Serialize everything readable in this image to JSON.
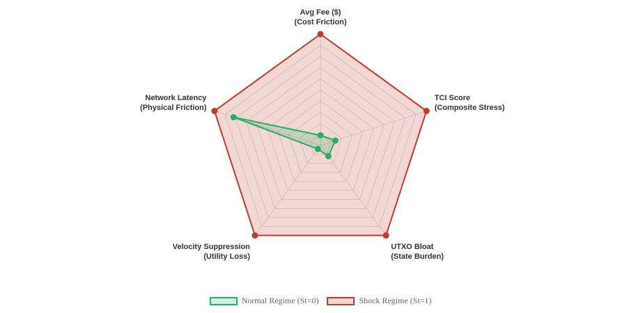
{
  "chart_data": {
    "type": "radar",
    "axes": [
      {
        "line1": "Avg Fee ($)",
        "line2": "(Cost Friction)"
      },
      {
        "line1": "TCI Score",
        "line2": "(Composite Stress)"
      },
      {
        "line1": "UTXO Bloat",
        "line2": "(State Burden)"
      },
      {
        "line1": "Velocity Suppression",
        "line2": "(Utility Loss)"
      },
      {
        "line1": "Network Latency",
        "line2": "(Physical Friction)"
      }
    ],
    "range": [
      0,
      1
    ],
    "grid": true,
    "legend_position": "bottom",
    "series": [
      {
        "name": "Normal Regime (St=0)",
        "values": [
          0.09,
          0.14,
          0.12,
          0.04,
          0.82
        ],
        "stroke": "#27ae60",
        "fill": "rgba(39,174,96,0.2)"
      },
      {
        "name": "Shock Regime (St=1)",
        "values": [
          1.0,
          1.0,
          1.0,
          1.0,
          1.0
        ],
        "stroke": "#c0392b",
        "fill": "rgba(192,57,43,0.2)"
      }
    ]
  }
}
